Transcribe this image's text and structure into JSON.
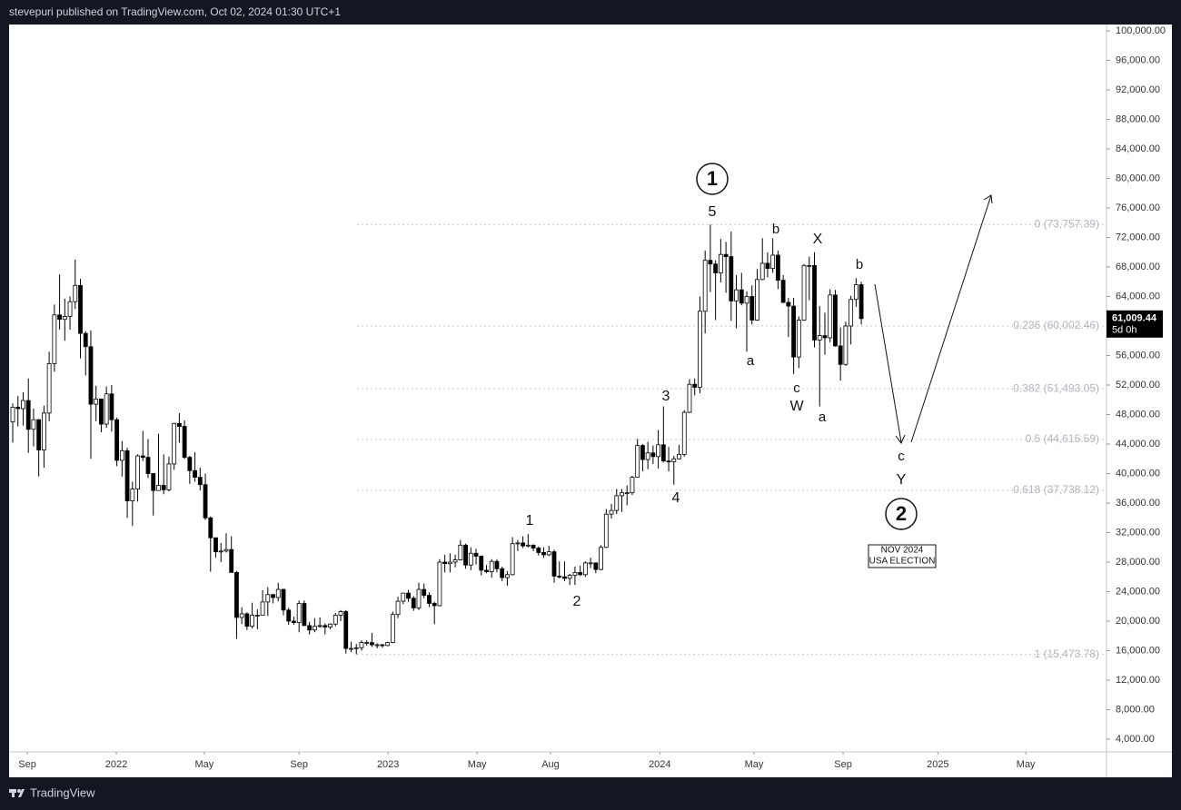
{
  "header": "stevepuri published on TradingView.com, Oct 02, 2024 01:30 UTC+1",
  "footer": "TradingView",
  "chart_data": {
    "type": "candlestick",
    "up_color": "#ffffff",
    "down_color": "#000000",
    "wick_color": "#000000",
    "xlim": [
      -0.7,
      210.1
    ],
    "xticks": [
      {
        "value": 2.8,
        "label": "Sep"
      },
      {
        "value": 19.9,
        "label": "2022"
      },
      {
        "value": 36.8,
        "label": "May"
      },
      {
        "value": 55.0,
        "label": "Sep"
      },
      {
        "value": 72.1,
        "label": "2023"
      },
      {
        "value": 89.2,
        "label": "May"
      },
      {
        "value": 103.3,
        "label": "Aug"
      },
      {
        "value": 124.3,
        "label": "2024"
      },
      {
        "value": 142.4,
        "label": "May"
      },
      {
        "value": 159.5,
        "label": "Sep"
      },
      {
        "value": 177.7,
        "label": "2025"
      },
      {
        "value": 194.6,
        "label": "May"
      }
    ],
    "ylim": [
      2280,
      100860
    ],
    "yticks": [
      {
        "value": 4000,
        "label": "4,000.00"
      },
      {
        "value": 8000,
        "label": "8,000.00"
      },
      {
        "value": 12000,
        "label": "12,000.00"
      },
      {
        "value": 16000,
        "label": "16,000.00"
      },
      {
        "value": 20000,
        "label": "20,000.00"
      },
      {
        "value": 24000,
        "label": "24,000.00"
      },
      {
        "value": 28000,
        "label": "28,000.00"
      },
      {
        "value": 32000,
        "label": "32,000.00"
      },
      {
        "value": 36000,
        "label": "36,000.00"
      },
      {
        "value": 40000,
        "label": "40,000.00"
      },
      {
        "value": 44000,
        "label": "44,000.00"
      },
      {
        "value": 48000,
        "label": "48,000.00"
      },
      {
        "value": 52000,
        "label": "52,000.00"
      },
      {
        "value": 56000,
        "label": "56,000.00"
      },
      {
        "value": 60000,
        "label": "60,000.00"
      },
      {
        "value": 64000,
        "label": "64,000.00"
      },
      {
        "value": 68000,
        "label": "68,000.00"
      },
      {
        "value": 72000,
        "label": "72,000.00"
      },
      {
        "value": 76000,
        "label": "76,000.00"
      },
      {
        "value": 80000,
        "label": "80,000.00"
      },
      {
        "value": 84000,
        "label": "84,000.00"
      },
      {
        "value": 88000,
        "label": "88,000.00"
      },
      {
        "value": 92000,
        "label": "92,000.00"
      },
      {
        "value": 96000,
        "label": "96,000.00"
      },
      {
        "value": 100000,
        "label": "100,000.00"
      }
    ],
    "last_price": {
      "value": 61009.44,
      "label": "61,009.44",
      "countdown": "5d 0h"
    },
    "fib_levels": [
      {
        "price": 73757.39,
        "label": "0 (73,757.39)"
      },
      {
        "price": 60002.46,
        "label": "0.236 (60,002.46)"
      },
      {
        "price": 51493.05,
        "label": "0.382 (51,493.05)"
      },
      {
        "price": 44615.59,
        "label": "0.5 (44,615.59)"
      },
      {
        "price": 37738.12,
        "label": "0.618 (37,738.12)"
      },
      {
        "price": 15473.78,
        "label": "1 (15,473.78)"
      }
    ],
    "annotations": [
      "1",
      "5",
      "b",
      "X",
      "b",
      "a",
      "c",
      "W",
      "a",
      "3",
      "4",
      "1",
      "2",
      "c",
      "Y",
      "2",
      "NOV 2024",
      "USA ELECTION"
    ],
    "ohlc": [
      [
        47000,
        49500,
        44200,
        49000
      ],
      [
        49000,
        50500,
        46400,
        48800
      ],
      [
        48800,
        51000,
        46500,
        49900
      ],
      [
        49900,
        52900,
        42800,
        46000
      ],
      [
        46000,
        48800,
        43700,
        47300
      ],
      [
        47300,
        47400,
        39600,
        43200
      ],
      [
        43200,
        49200,
        40800,
        48200
      ],
      [
        48200,
        56500,
        47100,
        54900
      ],
      [
        54900,
        62900,
        53800,
        61500
      ],
      [
        61500,
        67000,
        59500,
        60900
      ],
      [
        60900,
        63700,
        58000,
        61300
      ],
      [
        61300,
        64000,
        59500,
        63300
      ],
      [
        63300,
        69000,
        62300,
        65500
      ],
      [
        65500,
        66400,
        55600,
        59000
      ],
      [
        59000,
        59300,
        53300,
        57200
      ],
      [
        57200,
        59400,
        42000,
        49400
      ],
      [
        49400,
        51900,
        47100,
        50100
      ],
      [
        50100,
        50100,
        45600,
        46700
      ],
      [
        46700,
        51800,
        46200,
        50800
      ],
      [
        50800,
        52000,
        45700,
        47300
      ],
      [
        47300,
        47600,
        41000,
        41800
      ],
      [
        41800,
        44400,
        39600,
        43100
      ],
      [
        43100,
        43500,
        34000,
        36300
      ],
      [
        36300,
        38900,
        32900,
        37900
      ],
      [
        37900,
        42600,
        36200,
        42400
      ],
      [
        42400,
        45800,
        41700,
        42200
      ],
      [
        42200,
        44700,
        39400,
        40000
      ],
      [
        40000,
        40000,
        34300,
        37700
      ],
      [
        37700,
        45400,
        37700,
        38400
      ],
      [
        38400,
        42600,
        37200,
        37800
      ],
      [
        37800,
        42300,
        37600,
        41300
      ],
      [
        41300,
        46900,
        40500,
        46800
      ],
      [
        46800,
        48200,
        44200,
        46400
      ],
      [
        46400,
        47200,
        42000,
        42200
      ],
      [
        42200,
        42400,
        38600,
        40400
      ],
      [
        40400,
        42900,
        38900,
        39500
      ],
      [
        39500,
        40800,
        37700,
        38500
      ],
      [
        38500,
        40000,
        33700,
        34000
      ],
      [
        34000,
        34200,
        26700,
        31300
      ],
      [
        31300,
        31300,
        28600,
        29400
      ],
      [
        29400,
        30600,
        28000,
        29500
      ],
      [
        29500,
        31900,
        29300,
        29700
      ],
      [
        29700,
        31500,
        26600,
        26600
      ],
      [
        26600,
        26800,
        17600,
        20500
      ],
      [
        20500,
        21900,
        19600,
        21000
      ],
      [
        21000,
        21200,
        18800,
        19300
      ],
      [
        19300,
        22500,
        19000,
        20800
      ],
      [
        20800,
        21600,
        18900,
        20800
      ],
      [
        20800,
        24200,
        20800,
        22600
      ],
      [
        22600,
        24600,
        20700,
        23600
      ],
      [
        23600,
        23700,
        22400,
        23200
      ],
      [
        23200,
        25200,
        22700,
        24300
      ],
      [
        24300,
        24400,
        20800,
        21500
      ],
      [
        21500,
        21800,
        19500,
        20000
      ],
      [
        20000,
        20600,
        19500,
        19800
      ],
      [
        19800,
        22800,
        18500,
        22400
      ],
      [
        22400,
        22800,
        19400,
        19400
      ],
      [
        19400,
        19900,
        18200,
        18800
      ],
      [
        18800,
        20400,
        18500,
        19300
      ],
      [
        19300,
        20500,
        19100,
        19400
      ],
      [
        19400,
        19700,
        18200,
        19200
      ],
      [
        19200,
        19700,
        18900,
        19600
      ],
      [
        19600,
        21100,
        19300,
        20800
      ],
      [
        20800,
        21500,
        20000,
        21300
      ],
      [
        21300,
        21500,
        15600,
        16300
      ],
      [
        16300,
        17200,
        15800,
        16300
      ],
      [
        16300,
        16900,
        15500,
        16400
      ],
      [
        16400,
        17400,
        16000,
        17100
      ],
      [
        17100,
        17400,
        16700,
        17100
      ],
      [
        17100,
        18400,
        16500,
        16800
      ],
      [
        16800,
        17000,
        16300,
        16800
      ],
      [
        16800,
        16900,
        16400,
        16700
      ],
      [
        16700,
        17200,
        16600,
        17100
      ],
      [
        17100,
        21300,
        17000,
        20900
      ],
      [
        20900,
        23300,
        20400,
        22700
      ],
      [
        22700,
        23800,
        22300,
        23800
      ],
      [
        23800,
        24200,
        22600,
        23100
      ],
      [
        23100,
        23400,
        21400,
        21800
      ],
      [
        21800,
        25200,
        21500,
        24300
      ],
      [
        24300,
        25100,
        23100,
        23500
      ],
      [
        23500,
        23900,
        21900,
        22400
      ],
      [
        22400,
        22600,
        19600,
        22100
      ],
      [
        22100,
        28400,
        22000,
        28000
      ],
      [
        28000,
        29000,
        26600,
        27800
      ],
      [
        27800,
        29200,
        26600,
        28000
      ],
      [
        28000,
        29000,
        27300,
        28300
      ],
      [
        28300,
        31000,
        28200,
        30300
      ],
      [
        30300,
        30500,
        27100,
        27600
      ],
      [
        27600,
        30000,
        26900,
        29200
      ],
      [
        29200,
        29800,
        27700,
        28800
      ],
      [
        28800,
        28900,
        26200,
        26900
      ],
      [
        26900,
        27600,
        26500,
        26700
      ],
      [
        26700,
        28400,
        25900,
        28100
      ],
      [
        28100,
        28400,
        26600,
        27100
      ],
      [
        27100,
        27400,
        25400,
        25900
      ],
      [
        25900,
        26800,
        24800,
        26300
      ],
      [
        26300,
        31400,
        26200,
        30500
      ],
      [
        30500,
        31000,
        29500,
        30600
      ],
      [
        30600,
        31500,
        29900,
        30200
      ],
      [
        30200,
        31800,
        30000,
        30300
      ],
      [
        30300,
        30400,
        29500,
        29900
      ],
      [
        29900,
        30100,
        28900,
        29300
      ],
      [
        29300,
        30000,
        28600,
        29000
      ],
      [
        29000,
        30200,
        28800,
        29400
      ],
      [
        29400,
        29700,
        25200,
        26100
      ],
      [
        26100,
        28100,
        25800,
        26000
      ],
      [
        26000,
        28100,
        25400,
        25800
      ],
      [
        25800,
        26400,
        24900,
        26200
      ],
      [
        26200,
        27400,
        24900,
        26600
      ],
      [
        26600,
        27500,
        26100,
        26300
      ],
      [
        26300,
        28100,
        26000,
        27900
      ],
      [
        27900,
        28600,
        27200,
        27900
      ],
      [
        27900,
        27900,
        26500,
        27000
      ],
      [
        27000,
        30300,
        26900,
        30000
      ],
      [
        30000,
        35200,
        29900,
        34500
      ],
      [
        34500,
        35900,
        33900,
        35000
      ],
      [
        35000,
        37900,
        34500,
        37000
      ],
      [
        37000,
        37900,
        34800,
        37400
      ],
      [
        37400,
        38400,
        35700,
        37400
      ],
      [
        37400,
        39700,
        37100,
        39500
      ],
      [
        39500,
        44700,
        39500,
        43800
      ],
      [
        43800,
        44000,
        40300,
        41900
      ],
      [
        41900,
        44300,
        40600,
        42800
      ],
      [
        42800,
        43800,
        41300,
        42300
      ],
      [
        42300,
        45900,
        40700,
        43900
      ],
      [
        43900,
        49100,
        41500,
        41700
      ],
      [
        41700,
        43600,
        40300,
        41600
      ],
      [
        41600,
        42400,
        38500,
        42000
      ],
      [
        42000,
        43900,
        41900,
        42600
      ],
      [
        42600,
        48600,
        42300,
        48300
      ],
      [
        48300,
        52800,
        48200,
        52100
      ],
      [
        52100,
        52900,
        50600,
        51700
      ],
      [
        51700,
        64000,
        50900,
        62000
      ],
      [
        62000,
        70200,
        59000,
        68900
      ],
      [
        68900,
        73750,
        64600,
        68400
      ],
      [
        68400,
        68900,
        60800,
        67200
      ],
      [
        67200,
        71800,
        65900,
        69700
      ],
      [
        69700,
        71400,
        64500,
        69400
      ],
      [
        69400,
        72800,
        60700,
        63400
      ],
      [
        63400,
        66900,
        59700,
        64900
      ],
      [
        64900,
        67200,
        62800,
        63100
      ],
      [
        63100,
        64700,
        56500,
        64000
      ],
      [
        64000,
        65500,
        60200,
        60800
      ],
      [
        60800,
        67700,
        60700,
        66300
      ],
      [
        66300,
        71900,
        66200,
        68500
      ],
      [
        68500,
        70000,
        66600,
        67800
      ],
      [
        67800,
        71900,
        67200,
        69600
      ],
      [
        69600,
        70200,
        65000,
        66200
      ],
      [
        66200,
        66900,
        63100,
        63200
      ],
      [
        63200,
        63800,
        58500,
        62700
      ],
      [
        62700,
        63800,
        53500,
        55800
      ],
      [
        55800,
        61300,
        54300,
        60800
      ],
      [
        60800,
        68400,
        60700,
        68200
      ],
      [
        68200,
        69400,
        63500,
        68200
      ],
      [
        68200,
        70000,
        57100,
        58100
      ],
      [
        58100,
        62700,
        49100,
        58700
      ],
      [
        58700,
        61800,
        56100,
        58400
      ],
      [
        58400,
        65000,
        57800,
        64200
      ],
      [
        64200,
        64900,
        57200,
        57300
      ],
      [
        57300,
        59800,
        52600,
        54800
      ],
      [
        54800,
        60600,
        54600,
        60000
      ],
      [
        60000,
        64100,
        57500,
        63600
      ],
      [
        63600,
        66500,
        62600,
        65600
      ],
      [
        65600,
        66000,
        60200,
        61009.44
      ]
    ]
  }
}
